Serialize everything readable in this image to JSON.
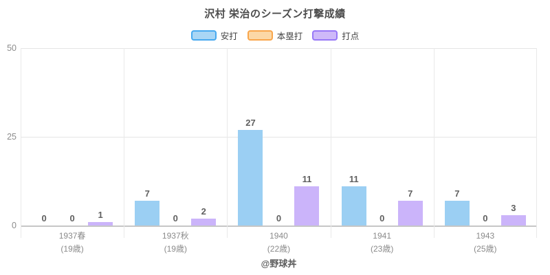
{
  "title": "沢村 栄治のシーズン打撃成績",
  "footer": "@野球丼",
  "chart_data": {
    "type": "bar",
    "title": "沢村 栄治のシーズン打撃成績",
    "categories": [
      "1937春",
      "1937秋",
      "1940",
      "1941",
      "1943"
    ],
    "category_sublabels": [
      "(19歳)",
      "(19歳)",
      "(22歳)",
      "(23歳)",
      "(25歳)"
    ],
    "series": [
      {
        "name": "安打",
        "values": [
          0,
          7,
          27,
          11,
          7
        ],
        "fill": "#9BCFF3",
        "legend_fill": "#A9D6F5",
        "border": "#47A9EF"
      },
      {
        "name": "本塁打",
        "values": [
          0,
          0,
          0,
          0,
          0
        ],
        "fill": "#FCD8A6",
        "legend_fill": "#FCD8A6",
        "border": "#F9A54A"
      },
      {
        "name": "打点",
        "values": [
          1,
          2,
          11,
          7,
          3
        ],
        "fill": "#CBB4FA",
        "legend_fill": "#CEB9F9",
        "border": "#9777F7"
      }
    ],
    "xlabel": "",
    "ylabel": "",
    "ylim": [
      0,
      50
    ],
    "yticks": [
      0,
      25,
      50
    ],
    "grid": "horizontal-ticks + vertical-category-separators",
    "legend_position": "top",
    "value_labels": "above-bars"
  }
}
